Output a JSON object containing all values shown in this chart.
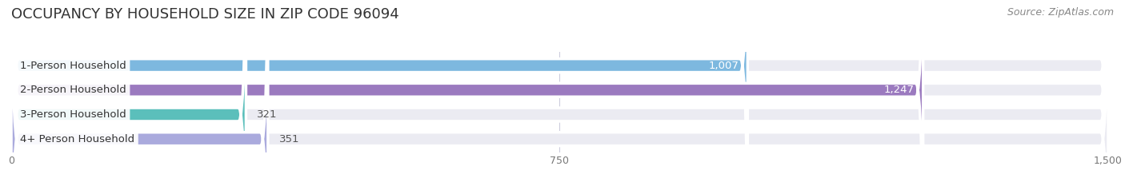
{
  "title": "OCCUPANCY BY HOUSEHOLD SIZE IN ZIP CODE 96094",
  "source": "Source: ZipAtlas.com",
  "categories": [
    "1-Person Household",
    "2-Person Household",
    "3-Person Household",
    "4+ Person Household"
  ],
  "values": [
    1007,
    1247,
    321,
    351
  ],
  "bar_colors": [
    "#7db8df",
    "#9b7abf",
    "#5bbfbb",
    "#aaaadd"
  ],
  "bar_label_colors": [
    "white",
    "white",
    "#555555",
    "#555555"
  ],
  "xlim": [
    0,
    1500
  ],
  "xticks": [
    0,
    750,
    1500
  ],
  "bg_color": "#ffffff",
  "bar_bg_color": "#ebebf2",
  "row_bg_color": "#f5f5fa",
  "title_fontsize": 13,
  "source_fontsize": 9,
  "label_fontsize": 9.5,
  "value_fontsize": 9.5,
  "bar_height": 0.55,
  "figsize": [
    14.06,
    2.33
  ],
  "dpi": 100
}
